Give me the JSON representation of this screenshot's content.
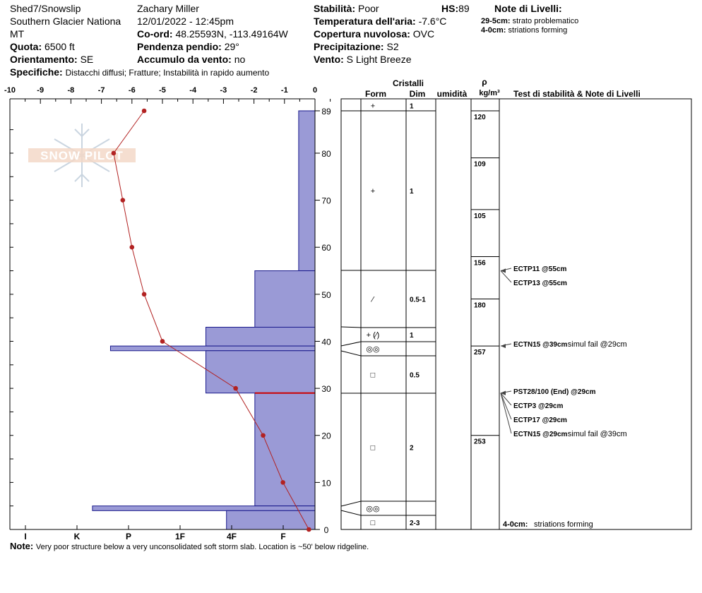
{
  "header": {
    "location_line1": "Shed7/Snowslip",
    "location_line2": "Southern Glacier Nationa",
    "location_line3": "MT",
    "observer": "Zachary Miller",
    "datetime": "12/01/2022 - 12:45pm",
    "coord_label": "Co-ord:",
    "coord_value": "48.25593N, -113.49164W",
    "quota_label": "Quota:",
    "quota_value": "6500 ft",
    "pendenza_label": "Pendenza pendio:",
    "pendenza_value": "29°",
    "orientamento_label": "Orientamento:",
    "orientamento_value": "SE",
    "accumulo_label": "Accumulo da vento:",
    "accumulo_value": "no",
    "specifiche_label": "Specifiche:",
    "specifiche_value": "Distacchi diffusi; Fratture; Instabilità in rapido aumento",
    "stabilita_label": "Stabilità:",
    "stabilita_value": "Poor",
    "hs_label": "HS:",
    "hs_value": "89",
    "temp_label": "Temperatura dell'aria:",
    "temp_value": "-7.6°C",
    "copertura_label": "Copertura nuvolosa:",
    "copertura_value": "OVC",
    "precip_label": "Precipitazione:",
    "precip_value": "S2",
    "vento_label": "Vento:",
    "vento_value": "S Light Breeze",
    "note_livelli_title": "Note di Livelli:",
    "note_livelli": [
      {
        "range": "29-5cm:",
        "text": "strato problematico"
      },
      {
        "range": "4-0cm:",
        "text": "striations forming"
      }
    ]
  },
  "logo": {
    "text": "SNOW PILOT"
  },
  "footer": {
    "note_label": "Note:",
    "note_text": "Very poor structure below a very unconsolidated soft storm slab. Location is ~50' below ridgeline."
  },
  "colors": {
    "hardness_fill": "#9a9ad6",
    "hardness_stroke": "#1a1a8c",
    "temp_line": "#b22222",
    "problem_layer": "#cc0000"
  },
  "chart_data": {
    "type": "snow-profile",
    "temperature_axis": {
      "ticks": [
        "-10",
        "-9",
        "-8",
        "-7",
        "-6",
        "-5",
        "-4",
        "-3",
        "-2",
        "-1",
        "0"
      ],
      "range": [
        -10,
        0
      ]
    },
    "height_axis": {
      "ticks": [
        "0",
        "10",
        "20",
        "30",
        "40",
        "50",
        "60",
        "70",
        "80",
        "89"
      ],
      "range": [
        0,
        89
      ]
    },
    "hardness_axis": {
      "ticks": [
        "I",
        "K",
        "P",
        "1F",
        "4F",
        "F"
      ],
      "values": [
        1,
        2,
        3,
        4,
        5,
        6
      ]
    },
    "temperature_profile": [
      {
        "h": 89,
        "t": -5.6
      },
      {
        "h": 80,
        "t": -6.6
      },
      {
        "h": 70,
        "t": -6.3
      },
      {
        "h": 60,
        "t": -6.0
      },
      {
        "h": 50,
        "t": -5.6
      },
      {
        "h": 40,
        "t": -5.0
      },
      {
        "h": 30,
        "t": -2.6
      },
      {
        "h": 20,
        "t": -1.7
      },
      {
        "h": 10,
        "t": -1.05
      },
      {
        "h": 0,
        "t": -0.2
      }
    ],
    "hardness_layers": [
      {
        "top": 89,
        "bottom": 55,
        "hardness": 6.3
      },
      {
        "top": 55,
        "bottom": 43,
        "hardness": 5.45
      },
      {
        "top": 43,
        "bottom": 39,
        "hardness": 4.5
      },
      {
        "top": 39,
        "bottom": 38,
        "hardness": 2.65
      },
      {
        "top": 38,
        "bottom": 29,
        "hardness": 4.5
      },
      {
        "top": 29,
        "bottom": 5,
        "hardness": 5.45
      },
      {
        "top": 5,
        "bottom": 4,
        "hardness": 2.3
      },
      {
        "top": 4,
        "bottom": 0,
        "hardness": 4.9
      }
    ],
    "problem_layer_height": 29,
    "grid_headers": {
      "cristalli": "Cristalli",
      "form": "Form",
      "dim": "Dim",
      "umidita": "umidità",
      "rho": "ρ",
      "rho_unit": "kg/m³",
      "tests": "Test di stabilità & Note di Livelli"
    },
    "layers": [
      {
        "top": 89,
        "bottom": 88,
        "form": "+",
        "dim": "1"
      },
      {
        "top": 88,
        "bottom": 55,
        "form": "+",
        "dim": "1"
      },
      {
        "top": 55,
        "bottom": 43,
        "form": "⁄",
        "dim": "0.5-1"
      },
      {
        "top": 43,
        "bottom": 40,
        "form": "+ (⁄)",
        "dim": "1"
      },
      {
        "top": 40,
        "bottom": 37,
        "form": "◎◎",
        "dim": ""
      },
      {
        "top": 37,
        "bottom": 29,
        "form": "□",
        "dim": "0.5"
      },
      {
        "top": 29,
        "bottom": 6,
        "form": "□",
        "dim": "2"
      },
      {
        "top": 6,
        "bottom": 3,
        "form": "◎◎",
        "dim": ""
      },
      {
        "top": 3,
        "bottom": 0,
        "form": "□",
        "dim": "2-3"
      }
    ],
    "densities": [
      {
        "top": 89,
        "bottom": 79,
        "value": "120"
      },
      {
        "top": 79,
        "bottom": 68,
        "value": "109"
      },
      {
        "top": 68,
        "bottom": 58,
        "value": "105"
      },
      {
        "top": 58,
        "bottom": 49,
        "value": "156"
      },
      {
        "top": 49,
        "bottom": 39,
        "value": "180"
      },
      {
        "top": 39,
        "bottom": 20,
        "value": "257"
      },
      {
        "top": 20,
        "bottom": 0,
        "value": "253"
      }
    ],
    "stability_tests": [
      {
        "height": 55,
        "label": "ECTP11 @55cm",
        "extra": ""
      },
      {
        "height": 55,
        "label": "ECTP13 @55cm",
        "extra": ""
      },
      {
        "height": 39,
        "label": "ECTN15 @39cm",
        "extra": "simul fail @29cm"
      },
      {
        "height": 29,
        "label": "PST28/100 (End) @29cm",
        "extra": ""
      },
      {
        "height": 29,
        "label": "ECTP3 @29cm",
        "extra": ""
      },
      {
        "height": 29,
        "label": "ECTP17 @29cm",
        "extra": ""
      },
      {
        "height": 29,
        "label": "ECTN15 @29cm",
        "extra": "simul fail @39cm"
      }
    ],
    "layer_note": {
      "range": "4-0cm:",
      "text": "striations forming"
    }
  }
}
